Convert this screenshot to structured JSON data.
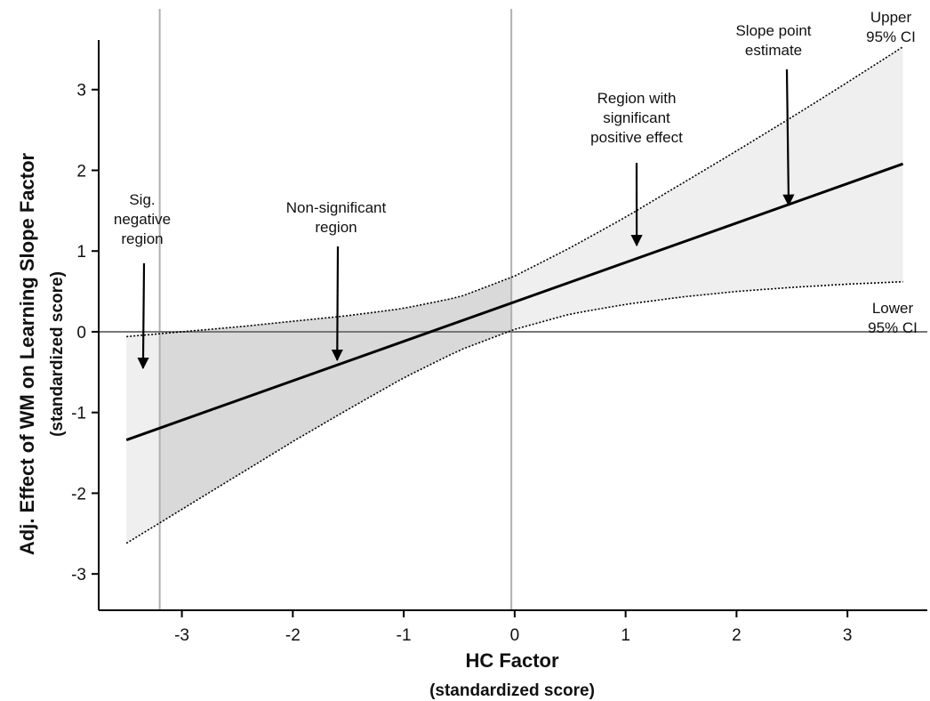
{
  "chart_data": {
    "type": "line",
    "xlabel": "HC Factor",
    "xlabel_sub": "(standardized score)",
    "ylabel": "Adj. Effect of WM on Learning Slope Factor",
    "ylabel_sub": "(standardized score)",
    "xlim": [
      -3.75,
      3.72
    ],
    "ylim": [
      -3.45,
      4.0
    ],
    "xticks": [
      -3,
      -2,
      -1,
      0,
      1,
      2,
      3
    ],
    "yticks": [
      -3,
      -2,
      -1,
      0,
      1,
      2,
      3
    ],
    "xtick_labels": [
      "-3",
      "-2",
      "-1",
      "0",
      "1",
      "2",
      "3"
    ],
    "ytick_labels": [
      "-3",
      "-2",
      "-1",
      "0",
      "1",
      "2",
      "3"
    ],
    "reference_lines": {
      "y_zero": 0,
      "x_boundaries": [
        -3.2,
        -0.03
      ]
    },
    "series": [
      {
        "role": "slope-estimate",
        "x": [
          -3.5,
          3.5
        ],
        "y": [
          -1.34,
          2.08
        ]
      },
      {
        "role": "upper-ci",
        "x": [
          -3.5,
          -3.0,
          -2.5,
          -2.0,
          -1.5,
          -1.0,
          -0.5,
          0.0,
          0.5,
          1.0,
          1.5,
          2.0,
          2.5,
          3.0,
          3.5
        ],
        "y": [
          -0.06,
          0.0,
          0.06,
          0.13,
          0.2,
          0.29,
          0.43,
          0.69,
          1.04,
          1.42,
          1.83,
          2.24,
          2.66,
          3.09,
          3.53
        ]
      },
      {
        "role": "lower-ci",
        "x": [
          -3.5,
          -3.0,
          -2.5,
          -2.0,
          -1.5,
          -1.0,
          -0.5,
          0.0,
          0.5,
          1.0,
          1.5,
          2.0,
          2.5,
          3.0,
          3.5
        ],
        "y": [
          -2.62,
          -2.2,
          -1.78,
          -1.36,
          -0.96,
          -0.57,
          -0.23,
          0.03,
          0.22,
          0.34,
          0.43,
          0.5,
          0.55,
          0.59,
          0.62
        ]
      }
    ],
    "annotations": [
      {
        "lines": [
          "Upper",
          "95% CI"
        ]
      },
      {
        "lines": [
          "Slope point",
          "estimate"
        ],
        "arrow_to": {
          "x": 2.47,
          "y": 1.57
        }
      },
      {
        "lines": [
          "Region with",
          "significant",
          "positive effect"
        ],
        "arrow_to": {
          "x": 1.1,
          "y": 1.07
        }
      },
      {
        "lines": [
          "Non-significant",
          "region"
        ],
        "arrow_to": {
          "x": -1.6,
          "y": -0.35
        }
      },
      {
        "lines": [
          "Sig.",
          "negative",
          "region"
        ],
        "arrow_to": {
          "x": -3.35,
          "y": -0.45
        }
      },
      {
        "lines": [
          "Lower",
          "95% CI"
        ]
      }
    ],
    "colors": {
      "band_outer": "#efefef",
      "band_nonsig": "#d9d9d9",
      "line": "#000000",
      "ref_line": "#777777",
      "boundary_line": "#b0b0b0"
    }
  }
}
